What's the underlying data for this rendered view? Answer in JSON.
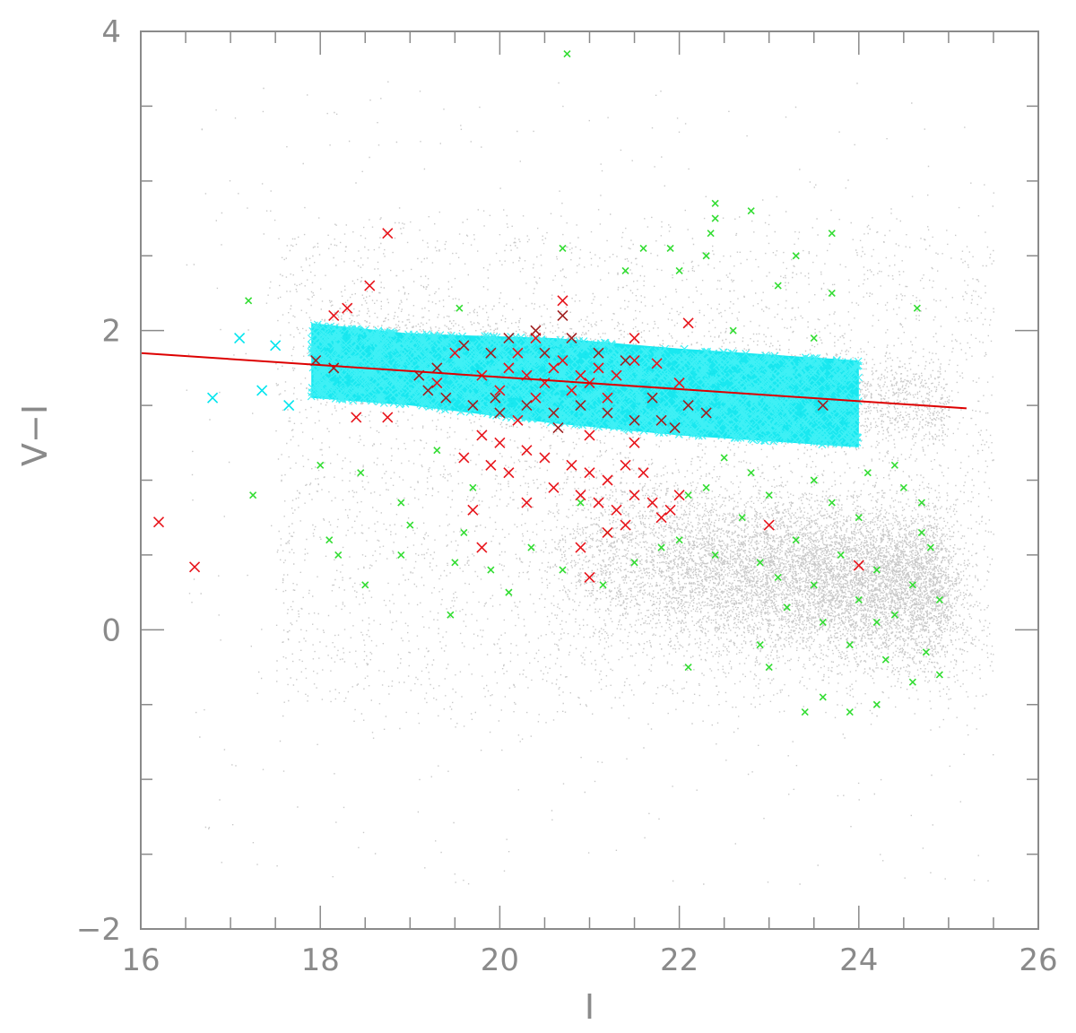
{
  "chart_data": {
    "type": "scatter",
    "title": "",
    "xlabel": "I",
    "ylabel": "V−I",
    "xlim": [
      16,
      26
    ],
    "ylim": [
      -2,
      4
    ],
    "x_ticks": [
      {
        "value": 16,
        "label": "16"
      },
      {
        "value": 18,
        "label": "18"
      },
      {
        "value": 20,
        "label": "20"
      },
      {
        "value": 22,
        "label": "22"
      },
      {
        "value": 24,
        "label": "24"
      },
      {
        "value": 26,
        "label": "26"
      }
    ],
    "y_ticks": [
      {
        "value": -2,
        "label": "−2"
      },
      {
        "value": 0,
        "label": "0"
      },
      {
        "value": 2,
        "label": "2"
      },
      {
        "value": 4,
        "label": "4"
      }
    ],
    "x_minor_step": 0.5,
    "y_minor_step": 0.5,
    "grid": false,
    "legend": "none",
    "colors": {
      "axes": "#8a8a8a",
      "field_dots": "#9a9a9a",
      "band": "#00e5ee",
      "red_x": "#e8141b",
      "dark_red_x": "#a02020",
      "green_x": "#33dd33",
      "fit_line": "#dd0000"
    },
    "fit_line": {
      "x": [
        16.0,
        25.2
      ],
      "y": [
        1.85,
        1.48
      ]
    },
    "band_region": {
      "x_range": [
        17.9,
        24.0
      ],
      "upper": [
        [
          17.9,
          2.05
        ],
        [
          19.0,
          1.98
        ],
        [
          20.6,
          1.95
        ],
        [
          22.0,
          1.88
        ],
        [
          24.0,
          1.8
        ]
      ],
      "lower": [
        [
          17.9,
          1.55
        ],
        [
          19.0,
          1.5
        ],
        [
          20.6,
          1.38
        ],
        [
          22.0,
          1.3
        ],
        [
          24.0,
          1.22
        ]
      ]
    },
    "series": [
      {
        "marker": "x",
        "color": "#33dd33",
        "points": [
          [
            20.75,
            3.85
          ],
          [
            22.4,
            2.85
          ],
          [
            22.4,
            2.75
          ],
          [
            22.8,
            2.8
          ],
          [
            22.35,
            2.65
          ],
          [
            20.7,
            2.55
          ],
          [
            21.6,
            2.55
          ],
          [
            23.7,
            2.65
          ],
          [
            22.3,
            2.5
          ],
          [
            21.9,
            2.55
          ],
          [
            23.3,
            2.5
          ],
          [
            22.0,
            2.4
          ],
          [
            21.4,
            2.4
          ],
          [
            17.2,
            2.2
          ],
          [
            23.1,
            2.3
          ],
          [
            23.7,
            2.25
          ],
          [
            24.65,
            2.15
          ],
          [
            22.6,
            2.0
          ],
          [
            19.55,
            2.15
          ],
          [
            23.5,
            1.95
          ],
          [
            17.25,
            0.9
          ],
          [
            18.0,
            1.1
          ],
          [
            18.45,
            1.05
          ],
          [
            18.1,
            0.6
          ],
          [
            18.9,
            0.85
          ],
          [
            19.3,
            1.2
          ],
          [
            18.9,
            0.5
          ],
          [
            19.5,
            0.45
          ],
          [
            19.6,
            0.65
          ],
          [
            19.9,
            0.4
          ],
          [
            20.35,
            0.55
          ],
          [
            20.7,
            0.4
          ],
          [
            19.45,
            0.1
          ],
          [
            20.1,
            0.25
          ],
          [
            21.15,
            0.3
          ],
          [
            21.5,
            0.45
          ],
          [
            22.0,
            0.6
          ],
          [
            22.1,
            0.9
          ],
          [
            22.4,
            0.5
          ],
          [
            22.7,
            0.75
          ],
          [
            22.9,
            0.45
          ],
          [
            23.1,
            0.35
          ],
          [
            23.3,
            0.6
          ],
          [
            23.5,
            0.3
          ],
          [
            23.8,
            0.5
          ],
          [
            24.0,
            0.2
          ],
          [
            24.2,
            0.4
          ],
          [
            24.4,
            0.1
          ],
          [
            24.6,
            0.3
          ],
          [
            24.8,
            0.55
          ],
          [
            23.0,
            0.9
          ],
          [
            23.5,
            1.0
          ],
          [
            24.1,
            1.05
          ],
          [
            24.4,
            1.1
          ],
          [
            24.7,
            0.85
          ],
          [
            22.5,
            1.15
          ],
          [
            22.8,
            1.05
          ],
          [
            23.2,
            0.15
          ],
          [
            23.6,
            0.05
          ],
          [
            23.9,
            -0.1
          ],
          [
            24.3,
            -0.2
          ],
          [
            24.6,
            -0.35
          ],
          [
            24.9,
            -0.3
          ],
          [
            23.4,
            -0.55
          ],
          [
            23.6,
            -0.45
          ],
          [
            23.9,
            -0.55
          ],
          [
            24.2,
            -0.5
          ],
          [
            22.1,
            -0.25
          ],
          [
            22.9,
            -0.1
          ],
          [
            21.2,
            0.65
          ],
          [
            20.9,
            0.85
          ],
          [
            19.7,
            0.95
          ],
          [
            18.5,
            0.3
          ],
          [
            18.2,
            0.5
          ],
          [
            19.0,
            0.7
          ],
          [
            24.9,
            0.2
          ],
          [
            24.7,
            0.65
          ],
          [
            24.0,
            0.75
          ],
          [
            23.7,
            0.85
          ],
          [
            22.3,
            0.95
          ],
          [
            21.8,
            0.55
          ],
          [
            24.5,
            0.95
          ],
          [
            23.0,
            -0.25
          ],
          [
            24.75,
            -0.15
          ],
          [
            24.2,
            0.05
          ]
        ]
      },
      {
        "marker": "x",
        "color": "#e8141b",
        "points": [
          [
            18.75,
            2.65
          ],
          [
            18.55,
            2.3
          ],
          [
            20.7,
            2.2
          ],
          [
            18.3,
            2.15
          ],
          [
            18.15,
            2.1
          ],
          [
            22.1,
            2.05
          ],
          [
            20.4,
            1.95
          ],
          [
            21.5,
            1.95
          ],
          [
            16.2,
            0.72
          ],
          [
            16.6,
            0.42
          ],
          [
            18.4,
            1.42
          ],
          [
            18.75,
            1.42
          ],
          [
            19.8,
            1.3
          ],
          [
            20.0,
            1.25
          ],
          [
            20.3,
            1.2
          ],
          [
            19.6,
            1.15
          ],
          [
            19.9,
            1.1
          ],
          [
            20.1,
            1.05
          ],
          [
            20.5,
            1.15
          ],
          [
            20.8,
            1.1
          ],
          [
            21.0,
            1.05
          ],
          [
            21.2,
            1.0
          ],
          [
            21.4,
            1.1
          ],
          [
            21.6,
            1.05
          ],
          [
            20.6,
            0.95
          ],
          [
            20.9,
            0.9
          ],
          [
            21.1,
            0.85
          ],
          [
            21.3,
            0.8
          ],
          [
            21.5,
            0.9
          ],
          [
            21.7,
            0.85
          ],
          [
            21.9,
            0.8
          ],
          [
            22.0,
            0.9
          ],
          [
            21.8,
            0.75
          ],
          [
            21.4,
            0.7
          ],
          [
            21.2,
            0.65
          ],
          [
            20.9,
            0.55
          ],
          [
            21.0,
            0.35
          ],
          [
            20.3,
            0.85
          ],
          [
            19.7,
            0.8
          ],
          [
            19.8,
            0.55
          ],
          [
            24.0,
            0.43
          ],
          [
            23.0,
            0.7
          ],
          [
            20.2,
            1.4
          ],
          [
            21.0,
            1.3
          ],
          [
            21.5,
            1.25
          ],
          [
            20.7,
            1.8
          ],
          [
            20.9,
            1.7
          ],
          [
            21.1,
            1.75
          ],
          [
            20.5,
            1.65
          ],
          [
            20.3,
            1.7
          ],
          [
            20.8,
            1.6
          ],
          [
            21.0,
            1.65
          ],
          [
            20.6,
            1.75
          ],
          [
            20.1,
            1.75
          ],
          [
            21.3,
            1.7
          ],
          [
            20.4,
            1.55
          ],
          [
            21.2,
            1.55
          ],
          [
            20.0,
            1.6
          ],
          [
            19.8,
            1.7
          ],
          [
            21.5,
            1.8
          ],
          [
            21.75,
            1.78
          ],
          [
            20.2,
            1.85
          ],
          [
            19.5,
            1.85
          ],
          [
            19.3,
            1.65
          ],
          [
            22.0,
            1.65
          ]
        ]
      },
      {
        "marker": "x",
        "color": "#a02020",
        "points": [
          [
            17.95,
            1.8
          ],
          [
            18.15,
            1.75
          ],
          [
            19.3,
            1.75
          ],
          [
            19.6,
            1.9
          ],
          [
            19.9,
            1.85
          ],
          [
            20.1,
            1.95
          ],
          [
            20.5,
            1.85
          ],
          [
            20.8,
            1.95
          ],
          [
            21.1,
            1.85
          ],
          [
            21.4,
            1.8
          ],
          [
            19.4,
            1.55
          ],
          [
            19.7,
            1.5
          ],
          [
            20.0,
            1.45
          ],
          [
            20.3,
            1.5
          ],
          [
            20.6,
            1.45
          ],
          [
            20.9,
            1.5
          ],
          [
            21.2,
            1.45
          ],
          [
            21.5,
            1.4
          ],
          [
            21.7,
            1.55
          ],
          [
            22.1,
            1.5
          ],
          [
            22.3,
            1.45
          ],
          [
            23.6,
            1.5
          ],
          [
            19.2,
            1.6
          ],
          [
            21.8,
            1.4
          ],
          [
            19.1,
            1.7
          ],
          [
            20.4,
            2.0
          ],
          [
            20.7,
            2.1
          ],
          [
            20.65,
            1.35
          ],
          [
            21.95,
            1.35
          ],
          [
            19.95,
            1.55
          ]
        ]
      },
      {
        "marker": "x",
        "color": "#00e5ee",
        "points": [
          [
            17.1,
            1.95
          ],
          [
            17.5,
            1.9
          ],
          [
            16.8,
            1.55
          ],
          [
            17.35,
            1.6
          ],
          [
            17.65,
            1.5
          ]
        ]
      }
    ]
  }
}
